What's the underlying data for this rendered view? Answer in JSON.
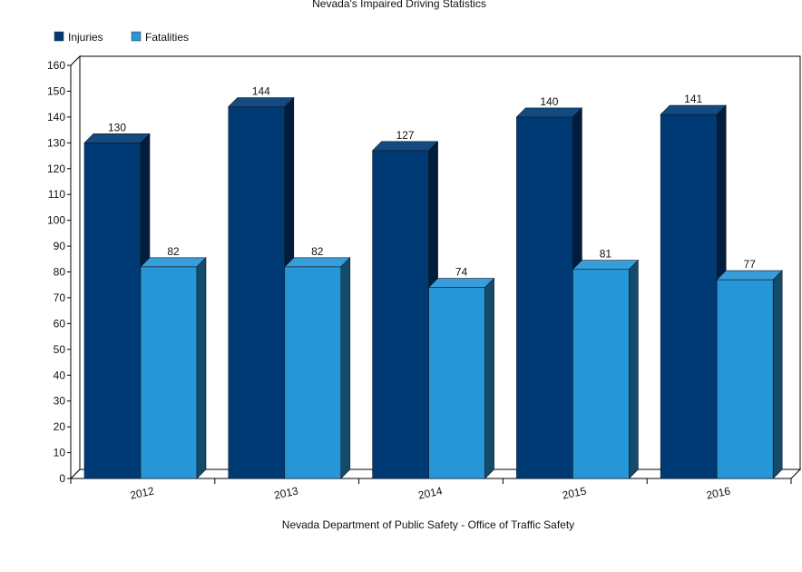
{
  "chart_data": {
    "type": "bar",
    "title": "Nevada's Impaired Driving Statistics",
    "xlabel": "Nevada Department of Public Safety - Office of Traffic Safety",
    "ylabel": "",
    "categories": [
      "2012",
      "2013",
      "2014",
      "2015",
      "2016"
    ],
    "series": [
      {
        "name": "Injuries",
        "values": [
          130,
          144,
          127,
          140,
          141
        ],
        "color": "#003a75"
      },
      {
        "name": "Fatalities",
        "values": [
          82,
          82,
          74,
          81,
          77
        ],
        "color": "#2796d6"
      }
    ],
    "ylim": [
      0,
      160
    ],
    "ytick_step": 10,
    "legend_position": "top-left",
    "grid": false
  }
}
